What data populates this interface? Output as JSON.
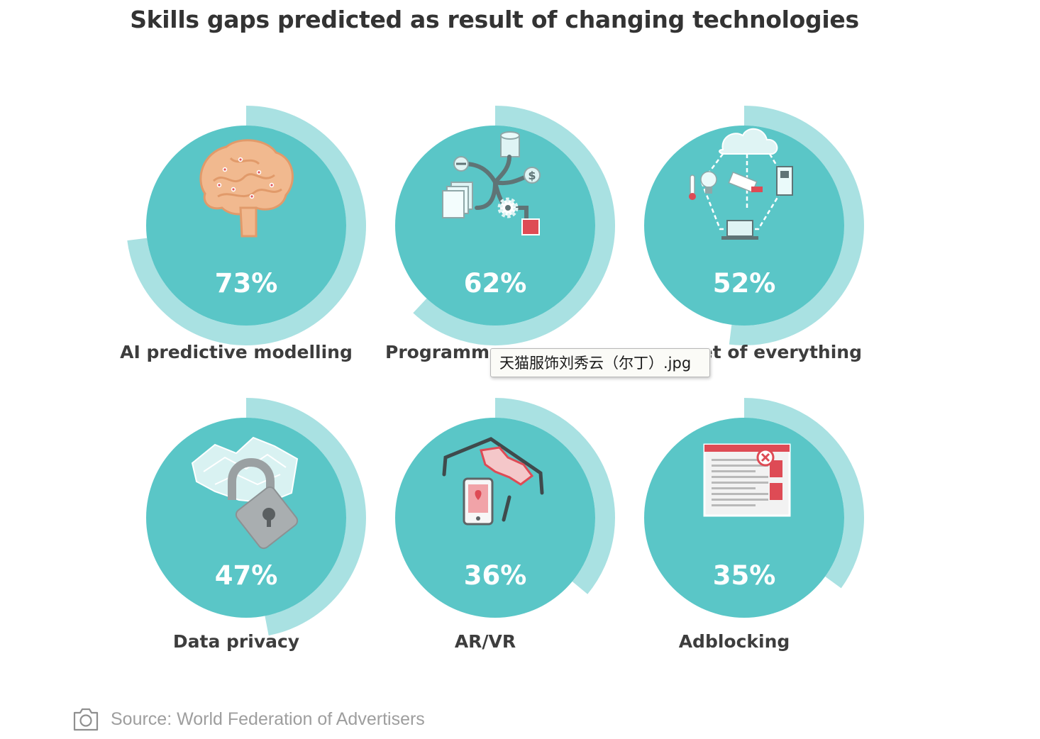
{
  "chart_data": {
    "type": "radial-progress",
    "title": "Skills gaps predicted as result of changing technologies",
    "categories": [
      "AI predictive modelling",
      "Programmatic marketing",
      "Internet of everything",
      "Data privacy",
      "AR/VR",
      "Adblocking"
    ],
    "values": [
      73,
      62,
      52,
      47,
      36,
      35
    ],
    "value_labels": [
      "73%",
      "62%",
      "52%",
      "47%",
      "36%",
      "35%"
    ],
    "unit": "%",
    "label_display": [
      "AI predictive modelling",
      "Programma",
      "et of everything",
      "Data privacy",
      "AR/VR",
      "Adblocking"
    ],
    "colors": {
      "circle": "#5ac6c7",
      "ring": "#a9e1e2",
      "title": "#333333",
      "label": "#3d3d3d",
      "percent_text": "#ffffff"
    },
    "icons": [
      "brain-icon",
      "data-flow-icon",
      "cloud-network-icon",
      "padlock-icon",
      "vr-glasses-icon",
      "adblock-browser-icon"
    ]
  },
  "tooltip": {
    "text": "天猫服饰刘秀云（尔丁）.jpg"
  },
  "source": {
    "icon": "camera-icon",
    "text": "Source: World Federation of Advertisers"
  }
}
